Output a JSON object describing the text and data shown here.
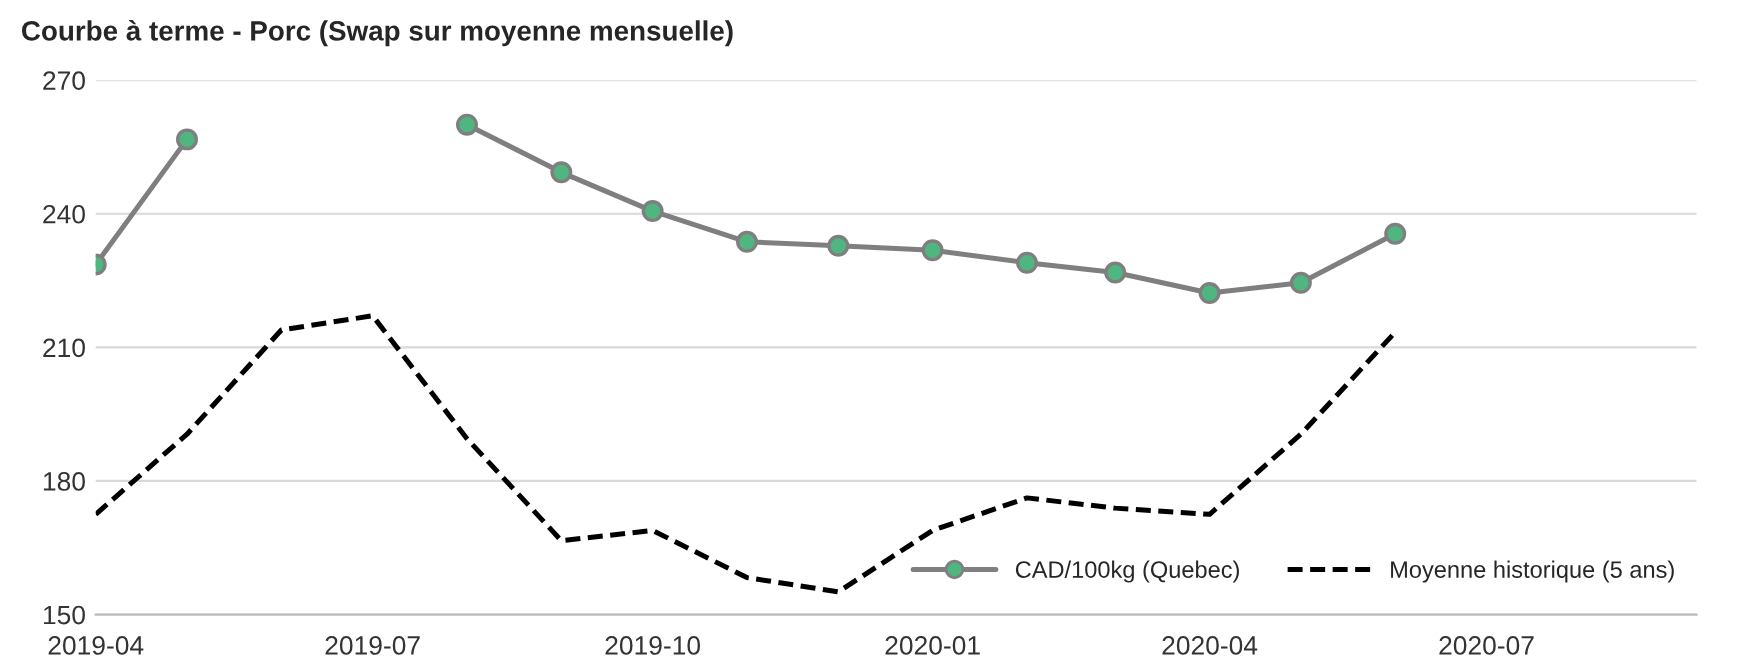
{
  "chart_data": {
    "type": "line",
    "title": "Courbe à terme - Porc (Swap sur moyenne mensuelle)",
    "x": [
      "2019-04",
      "2019-05",
      "2019-06",
      "2019-07",
      "2019-08",
      "2019-09",
      "2019-10",
      "2019-11",
      "2019-12",
      "2020-01",
      "2020-02",
      "2020-03",
      "2020-04",
      "2020-05",
      "2020-06"
    ],
    "series": [
      {
        "name": "CAD/100kg (Quebec)",
        "color": "#7f7f7f",
        "marker": "circle",
        "line_style": "solid",
        "colors": [
          "#4fb67f",
          "#4fb67f",
          "#4fb67f",
          "#4fb67f",
          "#4fb67f",
          "#4fb67f",
          "#4fb67f",
          "#4fb67f",
          "#4fb67f",
          "#4fb67f",
          "#4fb67f",
          "#4fb67f",
          "#4fb67f",
          "#4fb67f",
          "#4fb67f"
        ],
        "values": [
          228.6,
          256.7,
          null,
          null,
          260,
          249.3,
          240.6,
          233.7,
          232.8,
          231.8,
          229,
          226.8,
          222.2,
          224.5,
          235.5
        ]
      },
      {
        "name": "Moyenne historique (5 ans)",
        "color": "#000000",
        "marker": "none",
        "line_style": "dashed",
        "values": [
          172.5,
          190.5,
          213.9,
          217.1,
          189.5,
          166.6,
          168.9,
          158.3,
          155.1,
          168.9,
          176.2,
          173.9,
          172.5,
          190.5,
          213.4
        ]
      }
    ],
    "xlim": [
      "2019-04-01",
      "2020-09-08"
    ],
    "xticks": [
      {
        "value": "2019-04-01",
        "label": "2019-04"
      },
      {
        "value": "2019-07-01",
        "label": "2019-07"
      },
      {
        "value": "2019-10-01",
        "label": "2019-10"
      },
      {
        "value": "2020-01-01",
        "label": "2020-01"
      },
      {
        "value": "2020-04-01",
        "label": "2020-04"
      },
      {
        "value": "2020-07-01",
        "label": "2020-07"
      }
    ],
    "ylim": [
      150,
      270
    ],
    "yticks": [
      150,
      180,
      210,
      240,
      270
    ],
    "grid": "y",
    "legend": "bottom right"
  }
}
